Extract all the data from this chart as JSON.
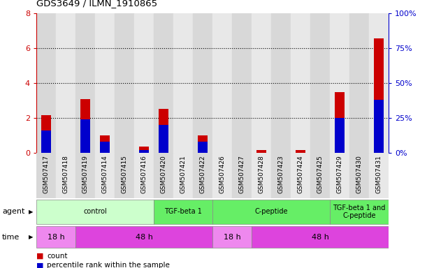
{
  "title": "GDS3649 / ILMN_1910865",
  "samples": [
    "GSM507417",
    "GSM507418",
    "GSM507419",
    "GSM507414",
    "GSM507415",
    "GSM507416",
    "GSM507420",
    "GSM507421",
    "GSM507422",
    "GSM507426",
    "GSM507427",
    "GSM507428",
    "GSM507423",
    "GSM507424",
    "GSM507425",
    "GSM507429",
    "GSM507430",
    "GSM507431"
  ],
  "count_values": [
    2.15,
    0.0,
    3.1,
    1.0,
    0.0,
    0.35,
    2.5,
    0.0,
    1.0,
    0.0,
    0.0,
    0.15,
    0.0,
    0.15,
    0.0,
    3.5,
    0.0,
    6.55
  ],
  "percentile_values": [
    16,
    0,
    24,
    8,
    0,
    2,
    20,
    0,
    8,
    0,
    0,
    0,
    0,
    0,
    0,
    25,
    0,
    38
  ],
  "ylim_left": [
    0,
    8
  ],
  "ylim_right": [
    0,
    100
  ],
  "yticks_left": [
    0,
    2,
    4,
    6,
    8
  ],
  "yticks_right": [
    0,
    25,
    50,
    75,
    100
  ],
  "bar_color_count": "#cc0000",
  "bar_color_pct": "#0000cc",
  "left_axis_color": "#cc0000",
  "right_axis_color": "#0000cc",
  "col_bg_even": "#d8d8d8",
  "col_bg_odd": "#e8e8e8",
  "agent_groups": [
    {
      "label": "control",
      "start": 0,
      "end": 5,
      "color": "#ccffcc"
    },
    {
      "label": "TGF-beta 1",
      "start": 6,
      "end": 8,
      "color": "#66ee66"
    },
    {
      "label": "C-peptide",
      "start": 9,
      "end": 14,
      "color": "#66ee66"
    },
    {
      "label": "TGF-beta 1 and\nC-peptide",
      "start": 15,
      "end": 17,
      "color": "#66ee66"
    }
  ],
  "time_groups": [
    {
      "label": "18 h",
      "start": 0,
      "end": 1,
      "color": "#ee88ee"
    },
    {
      "label": "48 h",
      "start": 2,
      "end": 8,
      "color": "#dd44dd"
    },
    {
      "label": "18 h",
      "start": 9,
      "end": 10,
      "color": "#ee88ee"
    },
    {
      "label": "48 h",
      "start": 11,
      "end": 17,
      "color": "#dd44dd"
    }
  ],
  "tick_label_fontsize": 6.5,
  "legend_count_label": "count",
  "legend_pct_label": "percentile rank within the sample"
}
